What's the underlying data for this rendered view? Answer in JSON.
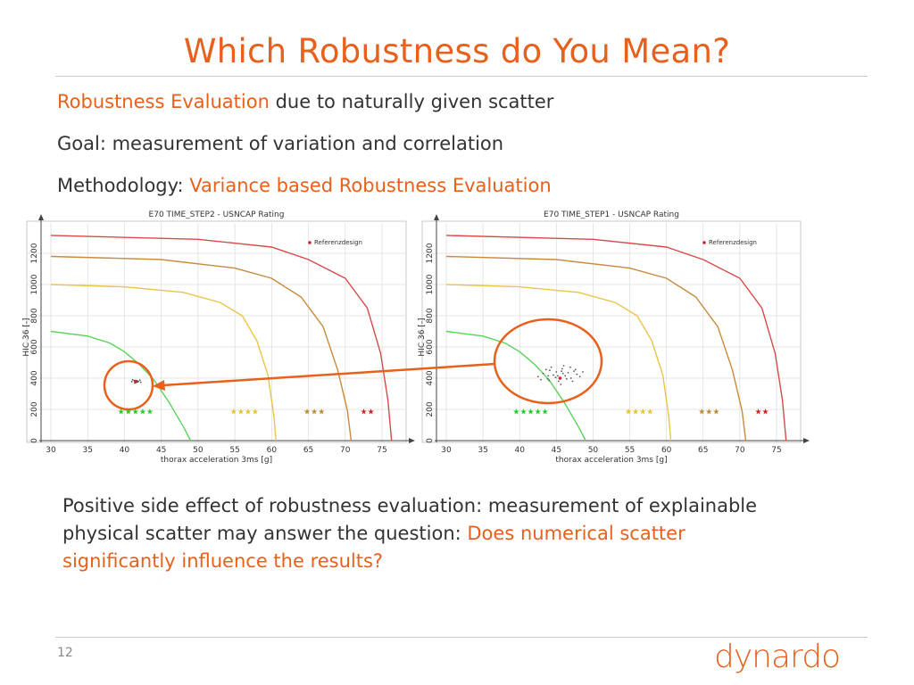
{
  "slide": {
    "title": "Which Robustness do You Mean?",
    "line1_highlight": "Robustness Evaluation",
    "line1_rest": " due to naturally given scatter",
    "line2": "Goal: measurement of variation and correlation",
    "line3_prefix": "Methodology: ",
    "line3_highlight": "Variance based Robustness Evaluation",
    "note_text": "Positive side effect of robustness evaluation: measurement of explainable physical scatter may answer the question: ",
    "note_highlight": "Does numerical scatter significantly influence the results?",
    "page_number": "12",
    "logo_text": "dynardo",
    "accent_color": "#e8601c"
  },
  "chart_data": [
    {
      "type": "scatter",
      "title": "E70 TIME_STEP2 - USNCAP Rating",
      "xlabel": "thorax acceleration 3ms [g]",
      "ylabel": "HIC 36 [-]",
      "xlim": [
        30,
        77
      ],
      "ylim": [
        0,
        1300
      ],
      "x_ticks": [
        "30",
        "35",
        "40",
        "45",
        "50",
        "55",
        "60",
        "65",
        "70",
        "75"
      ],
      "y_ticks": [
        "0",
        "200",
        "400",
        "600",
        "800",
        "1000",
        "1200"
      ],
      "legend": {
        "label": "Referenzdesign",
        "placement": "top-right"
      },
      "rating_labels": [
        "★★★★★",
        "★★★★",
        "★★★",
        "★★"
      ],
      "reference_point": {
        "x": 41.5,
        "y": 380
      },
      "scatter_points": [
        [
          41.0,
          378
        ],
        [
          41.3,
          385
        ],
        [
          41.6,
          372
        ],
        [
          41.9,
          380
        ],
        [
          42.1,
          388
        ],
        [
          41.4,
          368
        ],
        [
          41.8,
          376
        ],
        [
          42.2,
          374
        ],
        [
          41.1,
          390
        ],
        [
          41.7,
          383
        ]
      ]
    },
    {
      "type": "scatter",
      "title": "E70 TIME_STEP1 - USNCAP Rating",
      "xlabel": "thorax acceleration 3ms [g]",
      "ylabel": "HIC 36 [-]",
      "xlim": [
        30,
        77
      ],
      "ylim": [
        0,
        1300
      ],
      "x_ticks": [
        "30",
        "35",
        "40",
        "45",
        "50",
        "55",
        "60",
        "65",
        "70",
        "75"
      ],
      "y_ticks": [
        "0",
        "200",
        "400",
        "600",
        "800",
        "1000",
        "1200"
      ],
      "legend": {
        "label": "Referenzdesign",
        "placement": "top-right"
      },
      "rating_labels": [
        "★★★★★",
        "★★★★",
        "★★★",
        "★★"
      ],
      "reference_point": {
        "x": 45.5,
        "y": 400
      },
      "scatter_points": [
        [
          42.5,
          410
        ],
        [
          43.2,
          430
        ],
        [
          43.8,
          395
        ],
        [
          44.1,
          450
        ],
        [
          44.6,
          420
        ],
        [
          45.0,
          440
        ],
        [
          45.3,
          380
        ],
        [
          45.8,
          460
        ],
        [
          46.2,
          415
        ],
        [
          46.6,
          435
        ],
        [
          47.0,
          400
        ],
        [
          47.4,
          445
        ],
        [
          47.8,
          425
        ],
        [
          44.3,
          470
        ],
        [
          45.6,
          360
        ],
        [
          46.9,
          470
        ],
        [
          43.6,
          455
        ],
        [
          48.2,
          410
        ],
        [
          42.9,
          390
        ],
        [
          46.0,
          480
        ],
        [
          44.9,
          405
        ],
        [
          45.9,
          430
        ],
        [
          47.2,
          380
        ],
        [
          43.9,
          415
        ],
        [
          48.6,
          440
        ],
        [
          45.2,
          415
        ],
        [
          46.4,
          395
        ],
        [
          44.0,
          385
        ],
        [
          47.6,
          455
        ],
        [
          45.7,
          445
        ]
      ]
    }
  ]
}
